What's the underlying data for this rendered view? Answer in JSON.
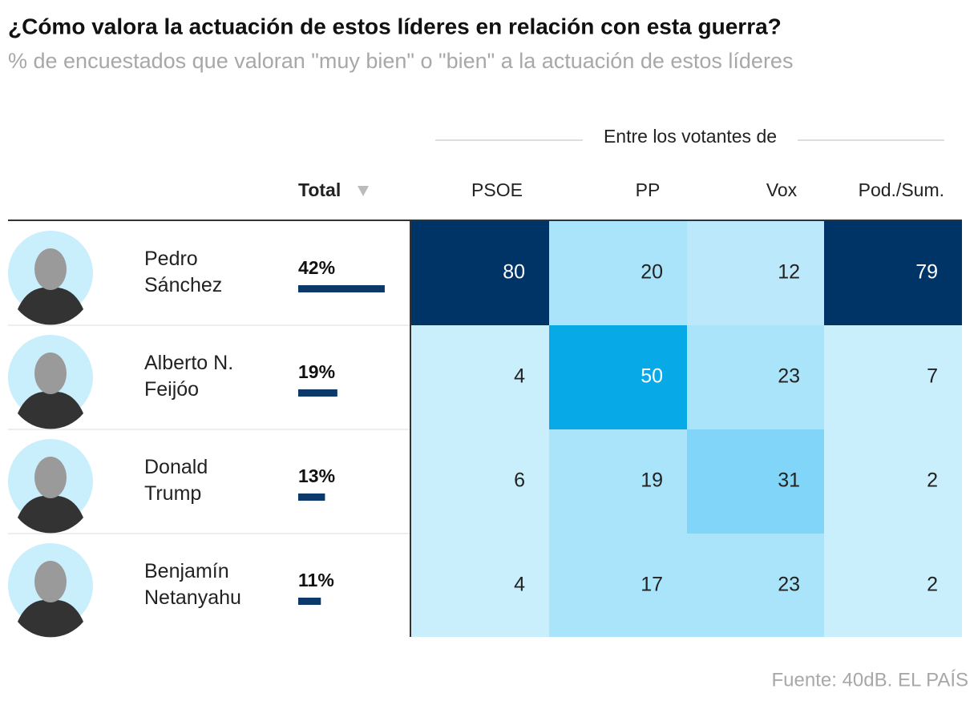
{
  "header": {
    "title": "¿Cómo valora la actuación de estos líderes en relación con esta guerra?",
    "subtitle": "% de encuestados que valoran \"muy bien\" o \"bien\" a la actuación de estos líderes"
  },
  "table": {
    "group_label": "Entre los votantes de",
    "columns": [
      "Total",
      "PSOE",
      "PP",
      "Vox",
      "Pod./Sum."
    ],
    "rows": [
      {
        "name": [
          "Pedro",
          "Sánchez"
        ],
        "total": {
          "value": 42,
          "label": "42%"
        },
        "values": [
          80,
          20,
          12,
          79
        ]
      },
      {
        "name": [
          "Alberto N.",
          "Feijóo"
        ],
        "total": {
          "value": 19,
          "label": "19%"
        },
        "values": [
          4,
          50,
          23,
          7
        ]
      },
      {
        "name": [
          "Donald",
          "Trump"
        ],
        "total": {
          "value": 13,
          "label": "13%"
        },
        "values": [
          6,
          19,
          31,
          2
        ]
      },
      {
        "name": [
          "Benjamín",
          "Netanyahu"
        ],
        "total": {
          "value": 11,
          "label": "11%"
        },
        "values": [
          4,
          17,
          23,
          2
        ]
      }
    ]
  },
  "footer": {
    "source": "Fuente: 40dB. EL PAÍS"
  }
}
